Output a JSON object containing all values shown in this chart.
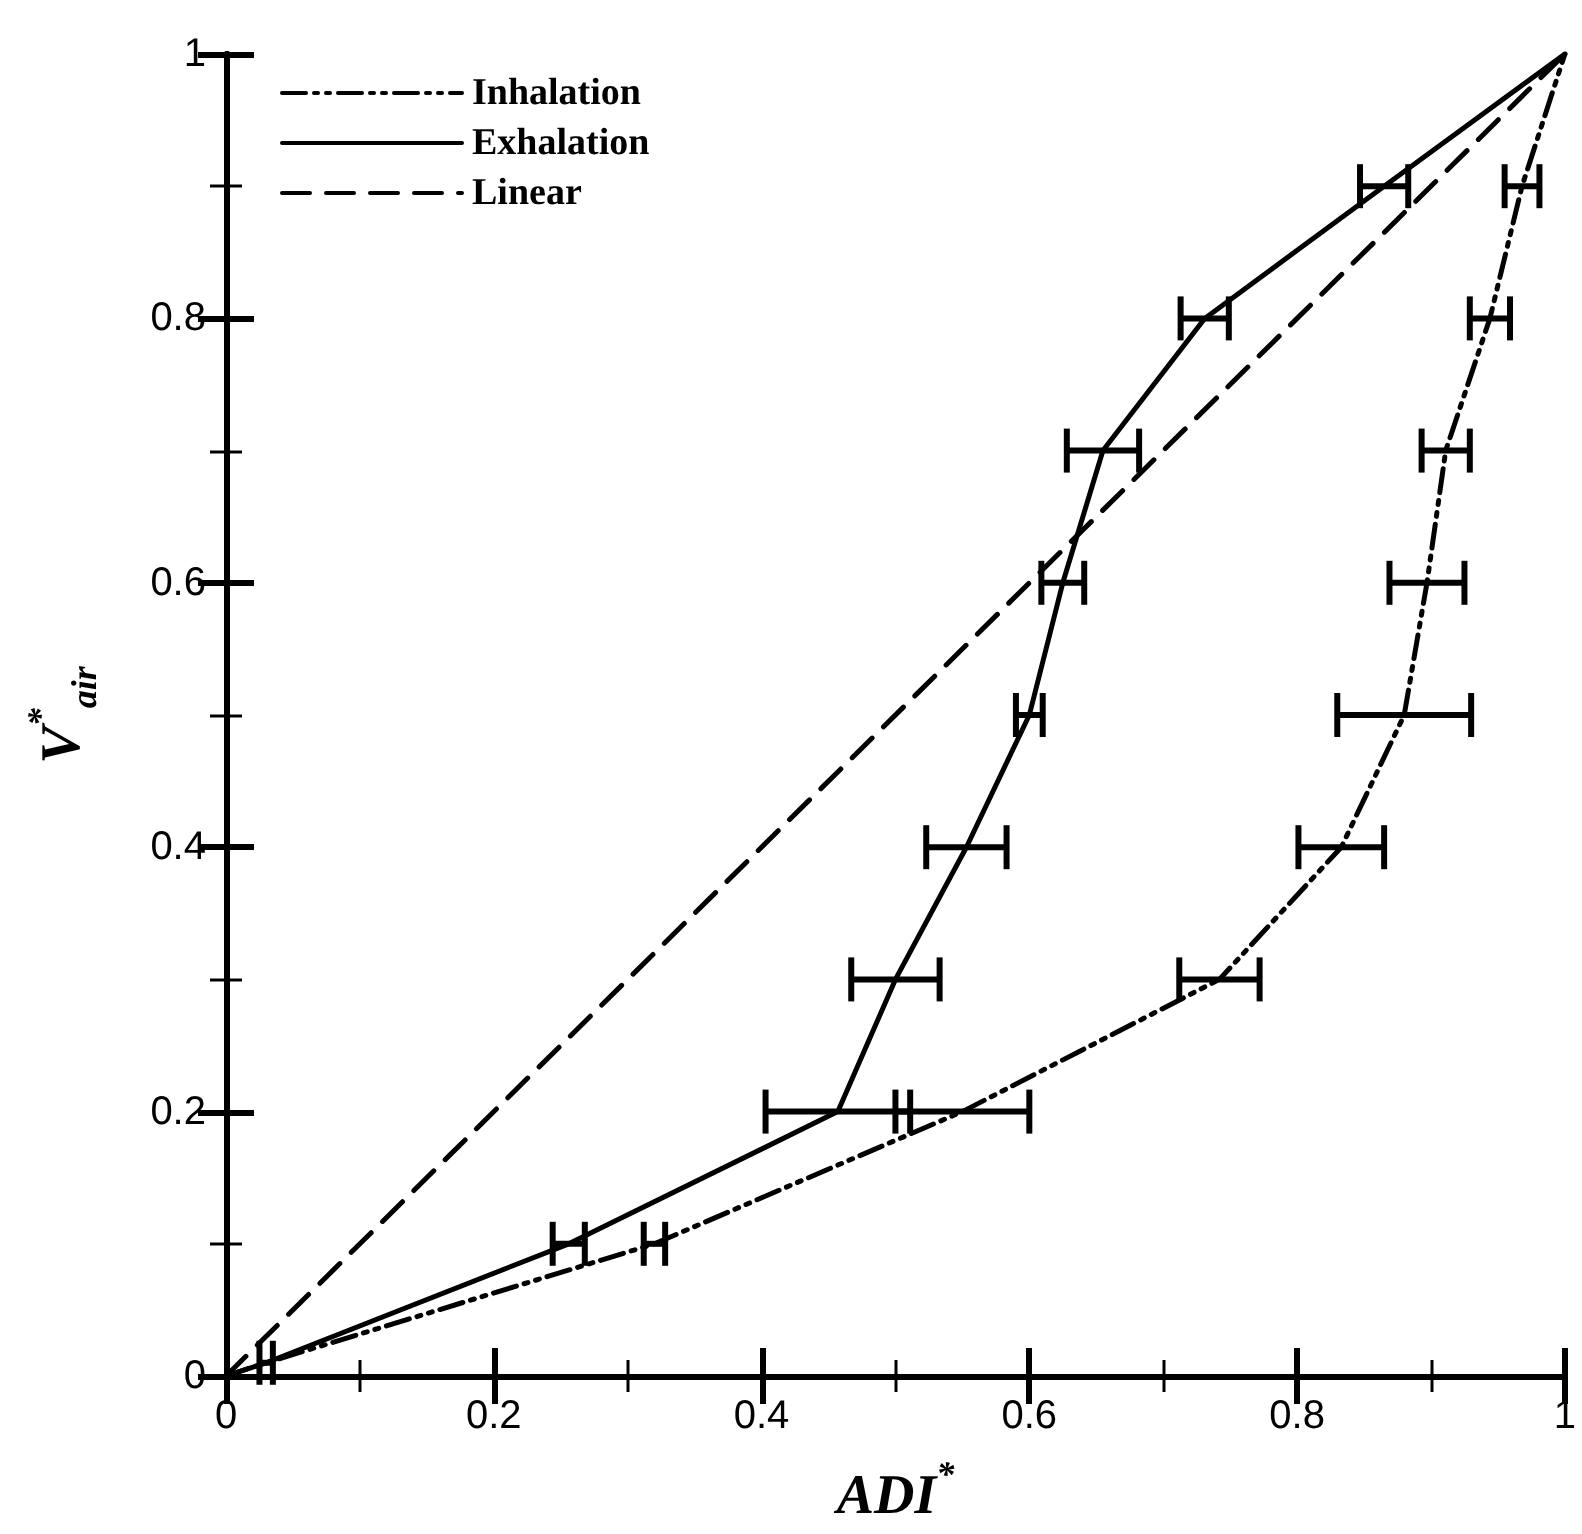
{
  "chart_data": {
    "type": "line",
    "xlabel": "ADI$^{*}$",
    "ylabel": "V$^{*}$$_{air}$",
    "xlim": [
      0,
      1
    ],
    "ylim": [
      0,
      1
    ],
    "xticks": [
      0,
      0.2,
      0.4,
      0.6,
      0.8,
      1
    ],
    "yticks": [
      0,
      0.2,
      0.4,
      0.6,
      0.8,
      1
    ],
    "grid": false,
    "legend": "top left",
    "marker": "none",
    "series": [
      {
        "name": "Inhalation",
        "color": "#000000",
        "line_style": "dotted",
        "x": [
          0,
          0.03,
          0.32,
          0.55,
          0.742,
          0.833,
          0.88,
          0.897,
          0.911,
          0.944,
          0.968,
          1
        ],
        "values": [
          0,
          0.01,
          0.1,
          0.2,
          0.3,
          0.4,
          0.5,
          0.6,
          0.7,
          0.8,
          0.9,
          1
        ],
        "xerrors": [
          null,
          null,
          0.008,
          0.05,
          0.03,
          0.032,
          0.05,
          0.028,
          0.018,
          0.015,
          0.013,
          null
        ]
      },
      {
        "name": "Exhalation",
        "color": "#000000",
        "line_style": "solid",
        "x": [
          0,
          0.03,
          0.256,
          0.457,
          0.5,
          0.553,
          0.6,
          0.625,
          0.655,
          0.731,
          0.865,
          1
        ],
        "values": [
          0,
          0.01,
          0.1,
          0.2,
          0.3,
          0.4,
          0.5,
          0.6,
          0.7,
          0.8,
          0.9,
          1
        ],
        "xerrors": [
          null,
          0.005,
          0.012,
          0.054,
          0.033,
          0.03,
          0.01,
          0.016,
          0.027,
          0.018,
          0.018,
          null
        ]
      },
      {
        "name": "Linear",
        "color": "#000000",
        "line_style": "dashed",
        "x": [
          0,
          1
        ],
        "values": [
          0,
          1
        ]
      }
    ]
  }
}
